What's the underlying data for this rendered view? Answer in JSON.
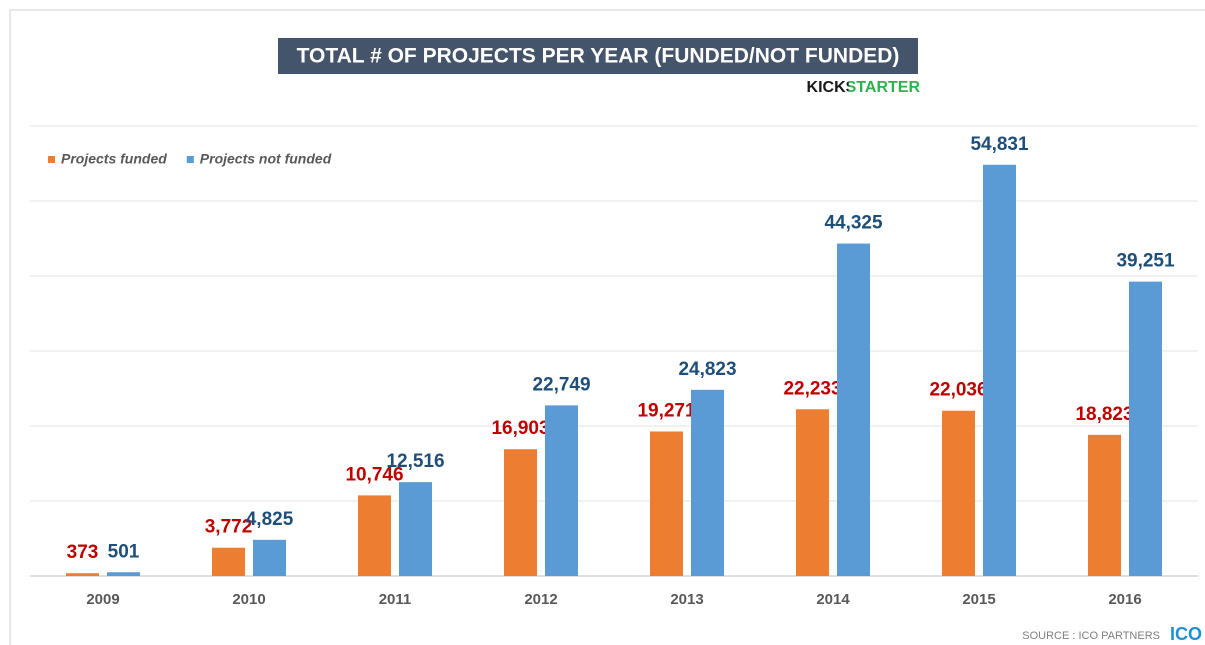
{
  "chart_data": {
    "type": "bar",
    "title": "TOTAL # OF PROJECTS PER YEAR (FUNDED/NOT FUNDED)",
    "brand": "KICKSTARTER",
    "source": "SOURCE : ICO PARTNERS",
    "source_logo": "ICO",
    "categories": [
      "2009",
      "2010",
      "2011",
      "2012",
      "2013",
      "2014",
      "2015",
      "2016"
    ],
    "series": [
      {
        "name": "Projects funded",
        "color": "#ED7D31",
        "label_color": "#C00000",
        "values": [
          373,
          3772,
          10746,
          16903,
          19271,
          22233,
          22036,
          18823
        ],
        "value_labels": [
          "373",
          "3,772",
          "10,746",
          "16,903",
          "19,271",
          "22,233",
          "22,036",
          "18,823"
        ]
      },
      {
        "name": "Projects not funded",
        "color": "#5B9BD5",
        "label_color": "#1F4E79",
        "values": [
          501,
          4825,
          12516,
          22749,
          24823,
          44325,
          54831,
          39251
        ],
        "value_labels": [
          "501",
          "4,825",
          "12,516",
          "22,749",
          "24,823",
          "44,325",
          "54,831",
          "39,251"
        ]
      }
    ],
    "ylim": [
      0,
      60000
    ],
    "yticks": [
      0,
      10000,
      20000,
      30000,
      40000,
      50000,
      60000
    ],
    "grid": true,
    "legend": "top-left"
  }
}
